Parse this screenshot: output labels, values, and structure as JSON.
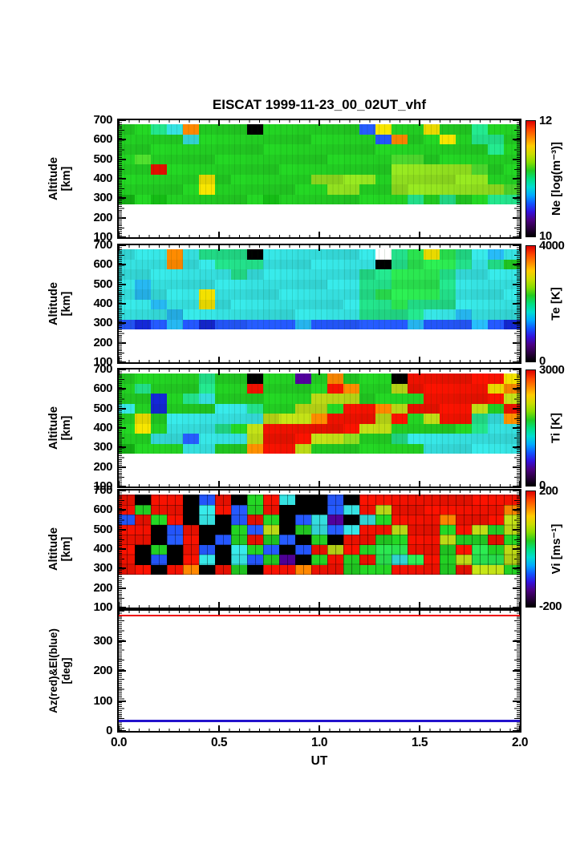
{
  "title": "EISCAT 1999-11-23_00_02UT_vhf",
  "axes": {
    "x_label": "UT",
    "x_ticks": [
      "0.0",
      "0.5",
      "1.0",
      "1.5",
      "2.0"
    ],
    "x_range_ut": [
      0.0,
      2.0
    ],
    "altitude_axis_label": [
      "Altitude",
      "[km]"
    ],
    "altitude_ticks": [
      "700",
      "600",
      "500",
      "400",
      "300",
      "200",
      "100"
    ],
    "azel_axis_label": [
      "Az(red)&El(blue)",
      "[deg]"
    ],
    "azel_ticks": [
      "300",
      "200",
      "100",
      "0"
    ]
  },
  "palette": {
    "g": "#22cc22",
    "e": "#14b514",
    "m": "#4fdd2e",
    "l": "#8fdd1f",
    "y": "#bcd916",
    "Y": "#eedd00",
    "o": "#ff8800",
    "r": "#ee1100",
    "t": "#22dd88",
    "G": "#2ae34f",
    "c": "#35dede",
    "d": "#26b4ee",
    "b": "#2457ff",
    "B": "#1326cc",
    "p": "#53009e",
    "k": "#000000",
    "w": "#ffffff"
  },
  "colormap_bottom_to_top": [
    "#000000",
    "#2a0040",
    "#4b0082",
    "#3311dd",
    "#1155ff",
    "#00aaff",
    "#00ddd0",
    "#00e080",
    "#22cc22",
    "#88dd00",
    "#ccdd00",
    "#ffcc00",
    "#ff8800",
    "#ff4400",
    "#dd0000"
  ],
  "chart_data": [
    {
      "type": "heatmap",
      "name": "Ne",
      "colorbar_label": "Ne [log(m⁻³)]",
      "colorbar_max": "12",
      "colorbar_min": "10",
      "ylabel": "Altitude [km]",
      "ylim_km": [
        100,
        700
      ],
      "data_altitude_span_km": [
        285,
        695
      ],
      "x_span_ut": [
        0,
        2
      ],
      "grid_rows_700km_to_285km": [
        "ggtcogggkggggggbYggYggtg",
        "ggggcgggggggggggboggYgttg",
        "gggggggggggggggggggggggtg",
        "gmgggggggggggggggmmgggggg",
        "ggrgggggggggggggglllllmgg",
        "gggggYggggggllllgllllllgg",
        "gggggYgggggggllgglllllllmg",
        "egeggggggeggggggggtgtggttg"
      ]
    },
    {
      "type": "heatmap",
      "name": "Te",
      "colorbar_label": "Te [K]",
      "colorbar_max": "4000",
      "colorbar_min": "0",
      "ylabel": "Altitude [km]",
      "ylim_km": [
        100,
        700
      ],
      "data_altitude_span_km": [
        285,
        695
      ],
      "x_span_ut": [
        0,
        2
      ],
      "grid_rows_700km_to_285km": [
        "cccoctttkcccccccwtGYGtcdc",
        "cccocctttcccccccktGGGtct",
        "ccccccctcccccccttGGGtcccc",
        "cdcccccccccccccttGGGtccccc",
        "cdcccYccccccccctGGGGtcccc",
        "ccdccYcccccccccttGtttcccc",
        "cccdcccccccccccttttccdccc",
        "bBbdbBbbbbbdbbbbbbdbbbdbB"
      ]
    },
    {
      "type": "heatmap",
      "name": "Ti",
      "colorbar_label": "Ti [K]",
      "colorbar_max": "3000",
      "colorbar_min": "0",
      "ylabel": "Altitude [km]",
      "ylim_km": [
        100,
        700
      ],
      "data_altitude_span_km": [
        285,
        695
      ],
      "x_span_ut": [
        0,
        2
      ],
      "grid_rows_700km_to_285km": [
        "gggggtggkggpgogggkrrrrrrY",
        "gtgggtggrggggroggyrrrrrYo",
        "ggBgtcggggggyyyggggrrrrry",
        "cgBgggcctggyygrroyrrrrygr",
        "gYgccccccyyyorrryrgyrrtco",
        "gYgccctgyrrrrrryygggggtccc",
        "ggccbcccyrrryylggtccccccc",
        "egggccggorrygggggggccccccg"
      ]
    },
    {
      "type": "heatmap",
      "name": "Vi",
      "colorbar_label": "Vi [ms⁻¹]",
      "colorbar_max": "200",
      "colorbar_min": "-200",
      "ylabel": "Altitude [km]",
      "ylim_km": [
        100,
        700
      ],
      "data_altitude_span_km": [
        285,
        695
      ],
      "x_span_ut": [
        0,
        2
      ],
      "grid_rows_700km_to_285km": [
        "rkrrkbrkgrckkbkrrrrrrrrrr",
        "rgrrkcrbgrkkkbcryrrrrrrro",
        "brgrkckbrgkbcpkcgrrrorrry",
        "rrkbrkkgbykgcbcrryrrgrygy",
        "rrkbrkbgrgbkgkrrggrryggrg",
        "rkgkrbkcgbkbryrgGGrrgrGgy",
        "rkbkrckcbgpkgrgrGcGrgyGGy",
        "rrkrokrgkrrorrgggrrrgryyg"
      ]
    },
    {
      "type": "line",
      "name": "AzEl",
      "ylabel": "Az(red)&El(blue) [deg]",
      "ylim_deg": [
        0,
        400
      ],
      "y_ticks": [
        "300",
        "200",
        "100",
        "0"
      ],
      "series": [
        {
          "name": "Az",
          "color": "#ee0000",
          "style": "horizontal-line",
          "value_deg": 385
        },
        {
          "name": "El",
          "color": "#2211cc",
          "style": "horizontal-line",
          "value_deg": 33
        }
      ]
    }
  ]
}
